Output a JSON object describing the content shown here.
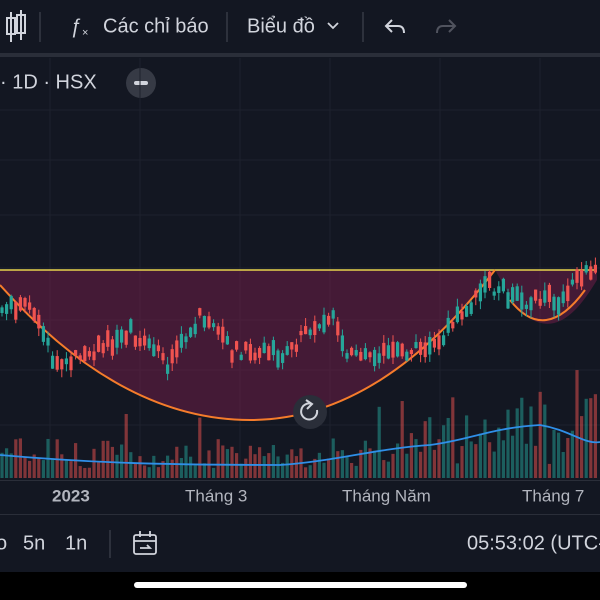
{
  "toolbar": {
    "indicators": "Các chỉ báo",
    "chart_menu": "Biểu đồ"
  },
  "symbol_bar": {
    "text": "· 1D · HSX"
  },
  "time_axis": {
    "labels": [
      "2023",
      "Tháng 3",
      "Tháng Năm",
      "Tháng 7"
    ]
  },
  "bottom_bar": {
    "ranges": [
      "o",
      "5n",
      "1n"
    ],
    "clock": "05:53:02 (UTC-"
  }
}
